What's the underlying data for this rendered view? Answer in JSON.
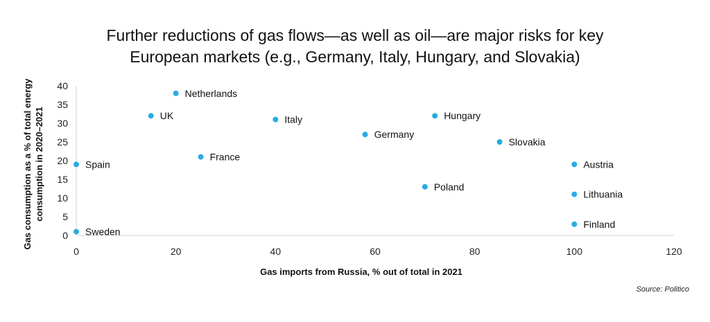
{
  "chart_data": {
    "type": "scatter",
    "title_lines": [
      "Further reductions of gas flows—as well as oil—are major risks for key",
      "European markets (e.g., Germany, Italy, Hungary, and Slovakia)"
    ],
    "xlabel": "Gas imports from Russia, % out of total in 2021",
    "ylabel_lines": [
      "Gas consumption as a % of total energy",
      "consumption in 2020–2021"
    ],
    "xlim": [
      0,
      120
    ],
    "ylim": [
      0,
      40
    ],
    "xticks": [
      0,
      20,
      40,
      60,
      80,
      100,
      120
    ],
    "yticks": [
      0,
      5,
      10,
      15,
      20,
      25,
      30,
      35,
      40
    ],
    "grid": false,
    "point_color": "#29abe2",
    "points": [
      {
        "label": "Netherlands",
        "x": 20,
        "y": 38
      },
      {
        "label": "UK",
        "x": 15,
        "y": 32
      },
      {
        "label": "Italy",
        "x": 40,
        "y": 31
      },
      {
        "label": "Hungary",
        "x": 72,
        "y": 32
      },
      {
        "label": "Germany",
        "x": 58,
        "y": 27
      },
      {
        "label": "Slovakia",
        "x": 85,
        "y": 25
      },
      {
        "label": "France",
        "x": 25,
        "y": 21
      },
      {
        "label": "Spain",
        "x": 0,
        "y": 19
      },
      {
        "label": "Austria",
        "x": 100,
        "y": 19
      },
      {
        "label": "Poland",
        "x": 70,
        "y": 13
      },
      {
        "label": "Lithuania",
        "x": 100,
        "y": 11
      },
      {
        "label": "Finland",
        "x": 100,
        "y": 3
      },
      {
        "label": "Sweden",
        "x": 0,
        "y": 1
      }
    ]
  },
  "source": "Source: Politico"
}
